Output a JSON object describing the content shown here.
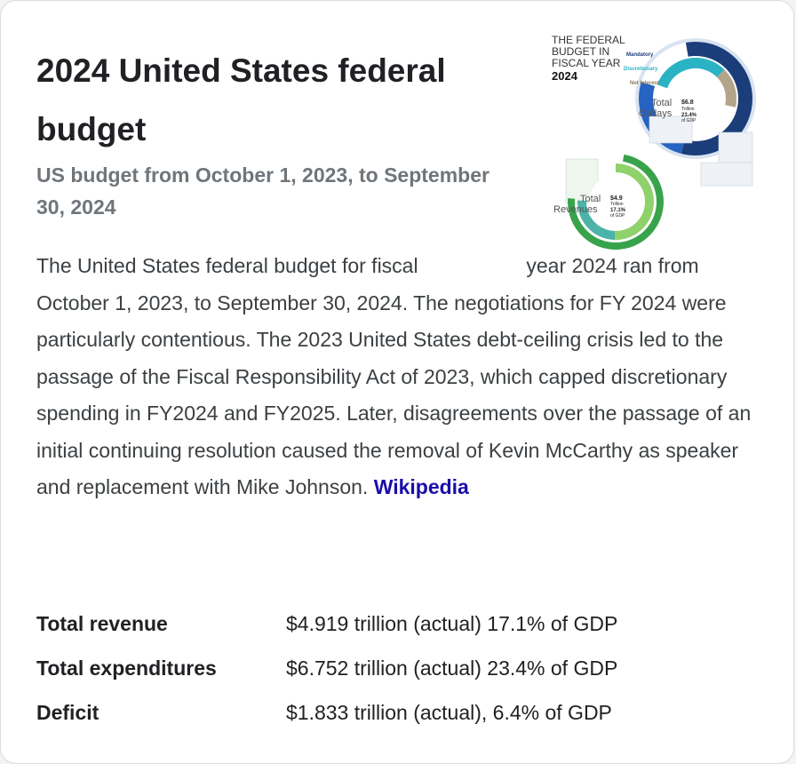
{
  "title": "2024 United States federal budget",
  "subtitle": "US budget from October 1, 2023, to September 30, 2024",
  "thumbnail": {
    "heading_lines": [
      "THE FEDERAL",
      "BUDGET IN",
      "FISCAL YEAR",
      "2024"
    ],
    "legend": {
      "mandatory": "Mandatory",
      "discretionary": "Discretionary",
      "net_interest": "Net Interest"
    },
    "outlays": {
      "label_lines": [
        "Total",
        "Outlays"
      ],
      "amount_lines": [
        "$6.8",
        "Trillion"
      ],
      "pct_lines": [
        "23.4%",
        "of GDP"
      ]
    },
    "revenues": {
      "label_lines": [
        "Total",
        "Revenues"
      ],
      "amount_lines": [
        "$4.9",
        "Trillion"
      ],
      "pct_lines": [
        "17.1%",
        "of GDP"
      ]
    },
    "colors": {
      "mandatory": "#1b3d7a",
      "discretionary": "#2ab3c5",
      "interest": "#b3a48a",
      "revenue_outer": "#38a34a",
      "revenue_inner": "#8fd16a",
      "accent_blue": "#2763c2"
    }
  },
  "description": {
    "first_line": "The United States federal budget for fiscal",
    "rest": "year 2024 ran from October 1, 2023, to September 30, 2024. The negotiations for FY 2024 were particularly contentious. The 2023 United States debt-ceiling crisis led to the passage of the Fiscal Responsibility Act of 2023, which capped discretionary spending in FY2024 and FY2025. Later, disagreements over the passage of an initial continuing resolution caused the removal of Kevin McCarthy as speaker and replacement with Mike Johnson.",
    "source": "Wikipedia"
  },
  "facts": [
    {
      "label": "Total revenue",
      "value": "$4.919 trillion (actual) 17.1% of GDP"
    },
    {
      "label": "Total expenditures",
      "value": "$6.752 trillion (actual) 23.4% of GDP"
    },
    {
      "label": "Deficit",
      "value": "$1.833 trillion (actual), 6.4% of GDP"
    }
  ]
}
